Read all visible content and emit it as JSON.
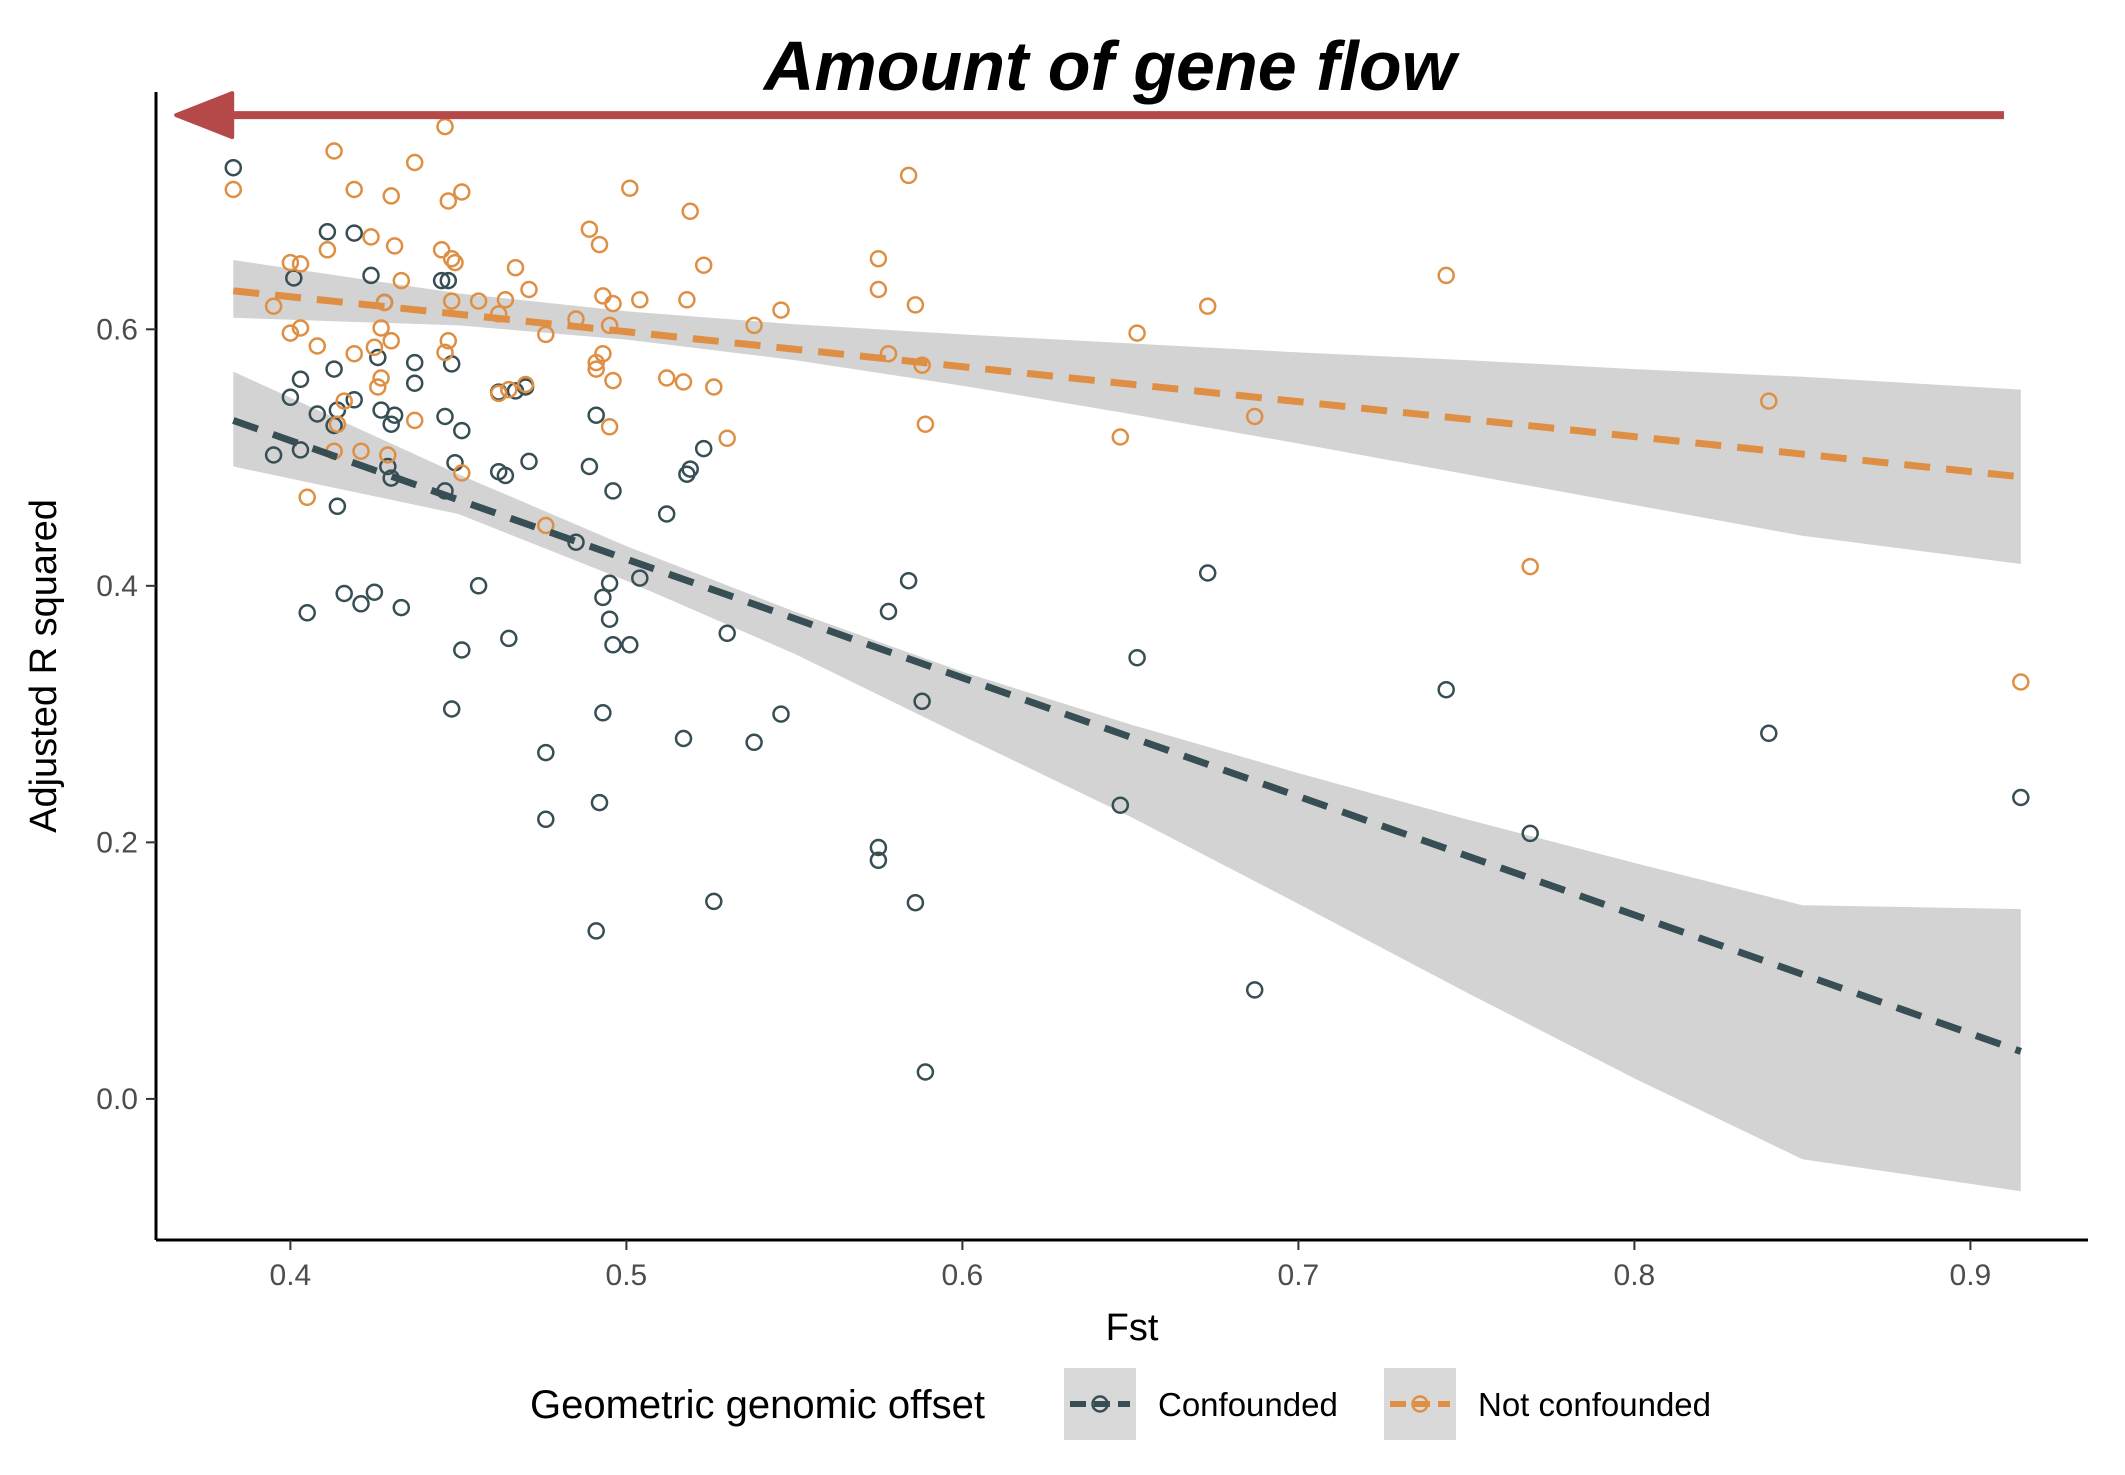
{
  "chart_data": {
    "type": "scatter",
    "title": "Amount of gene flow",
    "xlabel": "Fst",
    "ylabel": "Adjusted R squared",
    "xlim": [
      0.36,
      0.935
    ],
    "ylim": [
      -0.11,
      0.785
    ],
    "x_ticks": [
      0.4,
      0.5,
      0.6,
      0.7,
      0.8,
      0.9
    ],
    "x_tick_labels": [
      "0.4",
      "0.5",
      "0.6",
      "0.7",
      "0.8",
      "0.9"
    ],
    "y_ticks": [
      0.0,
      0.2,
      0.4,
      0.6
    ],
    "y_tick_labels": [
      "0.0",
      "0.2",
      "0.4",
      "0.6"
    ],
    "grid": false,
    "legend": {
      "title": "Geometric genomic offset",
      "position": "bottom",
      "entries": [
        "Confounded",
        "Not confounded"
      ]
    },
    "arrow": {
      "direction": "left",
      "from": [
        0.91,
        0.767
      ],
      "to": [
        0.366,
        0.767
      ],
      "color": "#b5494a"
    },
    "series": [
      {
        "name": "Confounded",
        "color": "#374e55",
        "trend": {
          "x": [
            0.383,
            0.915
          ],
          "y": [
            0.529,
            0.037
          ]
        },
        "band": {
          "x": [
            0.383,
            0.45,
            0.5,
            0.55,
            0.6,
            0.65,
            0.7,
            0.75,
            0.8,
            0.85,
            0.915
          ],
          "upper": [
            0.567,
            0.487,
            0.431,
            0.38,
            0.333,
            0.292,
            0.254,
            0.218,
            0.184,
            0.151,
            0.148
          ],
          "lower": [
            0.493,
            0.456,
            0.404,
            0.347,
            0.283,
            0.22,
            0.152,
            0.083,
            0.016,
            -0.047,
            -0.072
          ]
        },
        "points": [
          [
            0.383,
            0.726
          ],
          [
            0.395,
            0.502
          ],
          [
            0.4,
            0.547
          ],
          [
            0.401,
            0.64
          ],
          [
            0.403,
            0.506
          ],
          [
            0.403,
            0.561
          ],
          [
            0.405,
            0.379
          ],
          [
            0.408,
            0.534
          ],
          [
            0.411,
            0.676
          ],
          [
            0.413,
            0.525
          ],
          [
            0.413,
            0.569
          ],
          [
            0.414,
            0.537
          ],
          [
            0.414,
            0.462
          ],
          [
            0.416,
            0.394
          ],
          [
            0.419,
            0.675
          ],
          [
            0.419,
            0.545
          ],
          [
            0.421,
            0.386
          ],
          [
            0.424,
            0.642
          ],
          [
            0.425,
            0.395
          ],
          [
            0.426,
            0.578
          ],
          [
            0.427,
            0.537
          ],
          [
            0.428,
            0.621
          ],
          [
            0.429,
            0.493
          ],
          [
            0.43,
            0.484
          ],
          [
            0.43,
            0.526
          ],
          [
            0.431,
            0.533
          ],
          [
            0.433,
            0.383
          ],
          [
            0.437,
            0.558
          ],
          [
            0.437,
            0.574
          ],
          [
            0.445,
            0.638
          ],
          [
            0.446,
            0.474
          ],
          [
            0.446,
            0.532
          ],
          [
            0.447,
            0.638
          ],
          [
            0.448,
            0.573
          ],
          [
            0.448,
            0.304
          ],
          [
            0.449,
            0.496
          ],
          [
            0.451,
            0.521
          ],
          [
            0.451,
            0.35
          ],
          [
            0.456,
            0.4
          ],
          [
            0.462,
            0.551
          ],
          [
            0.462,
            0.489
          ],
          [
            0.464,
            0.486
          ],
          [
            0.465,
            0.359
          ],
          [
            0.467,
            0.552
          ],
          [
            0.47,
            0.555
          ],
          [
            0.471,
            0.497
          ],
          [
            0.476,
            0.27
          ],
          [
            0.476,
            0.218
          ],
          [
            0.485,
            0.434
          ],
          [
            0.489,
            0.493
          ],
          [
            0.491,
            0.533
          ],
          [
            0.491,
            0.131
          ],
          [
            0.492,
            0.231
          ],
          [
            0.493,
            0.391
          ],
          [
            0.493,
            0.301
          ],
          [
            0.495,
            0.374
          ],
          [
            0.495,
            0.402
          ],
          [
            0.496,
            0.474
          ],
          [
            0.496,
            0.354
          ],
          [
            0.501,
            0.354
          ],
          [
            0.504,
            0.406
          ],
          [
            0.512,
            0.456
          ],
          [
            0.517,
            0.281
          ],
          [
            0.518,
            0.487
          ],
          [
            0.519,
            0.491
          ],
          [
            0.523,
            0.507
          ],
          [
            0.526,
            0.154
          ],
          [
            0.53,
            0.363
          ],
          [
            0.538,
            0.278
          ],
          [
            0.546,
            0.3
          ],
          [
            0.575,
            0.196
          ],
          [
            0.575,
            0.186
          ],
          [
            0.578,
            0.38
          ],
          [
            0.584,
            0.404
          ],
          [
            0.586,
            0.153
          ],
          [
            0.588,
            0.31
          ],
          [
            0.589,
            0.021
          ],
          [
            0.647,
            0.229
          ],
          [
            0.652,
            0.344
          ],
          [
            0.673,
            0.41
          ],
          [
            0.687,
            0.085
          ],
          [
            0.744,
            0.319
          ],
          [
            0.769,
            0.207
          ],
          [
            0.84,
            0.285
          ],
          [
            0.915,
            0.235
          ]
        ]
      },
      {
        "name": "Not confounded",
        "color": "#df8f44",
        "trend": {
          "x": [
            0.383,
            0.915
          ],
          "y": [
            0.63,
            0.485
          ]
        },
        "band": {
          "x": [
            0.383,
            0.45,
            0.5,
            0.55,
            0.6,
            0.65,
            0.7,
            0.75,
            0.8,
            0.85,
            0.915
          ],
          "upper": [
            0.654,
            0.628,
            0.614,
            0.604,
            0.596,
            0.589,
            0.582,
            0.576,
            0.569,
            0.563,
            0.553
          ],
          "lower": [
            0.609,
            0.603,
            0.592,
            0.576,
            0.556,
            0.534,
            0.511,
            0.487,
            0.463,
            0.439,
            0.417
          ]
        },
        "points": [
          [
            0.383,
            0.709
          ],
          [
            0.395,
            0.618
          ],
          [
            0.4,
            0.597
          ],
          [
            0.4,
            0.652
          ],
          [
            0.403,
            0.651
          ],
          [
            0.403,
            0.601
          ],
          [
            0.405,
            0.469
          ],
          [
            0.408,
            0.587
          ],
          [
            0.411,
            0.662
          ],
          [
            0.413,
            0.739
          ],
          [
            0.413,
            0.505
          ],
          [
            0.414,
            0.526
          ],
          [
            0.416,
            0.544
          ],
          [
            0.419,
            0.709
          ],
          [
            0.419,
            0.581
          ],
          [
            0.421,
            0.505
          ],
          [
            0.424,
            0.672
          ],
          [
            0.425,
            0.586
          ],
          [
            0.426,
            0.555
          ],
          [
            0.427,
            0.562
          ],
          [
            0.427,
            0.601
          ],
          [
            0.428,
            0.621
          ],
          [
            0.429,
            0.502
          ],
          [
            0.43,
            0.704
          ],
          [
            0.43,
            0.591
          ],
          [
            0.431,
            0.665
          ],
          [
            0.433,
            0.638
          ],
          [
            0.437,
            0.529
          ],
          [
            0.437,
            0.73
          ],
          [
            0.445,
            0.662
          ],
          [
            0.446,
            0.758
          ],
          [
            0.446,
            0.582
          ],
          [
            0.447,
            0.591
          ],
          [
            0.447,
            0.7
          ],
          [
            0.448,
            0.622
          ],
          [
            0.448,
            0.655
          ],
          [
            0.449,
            0.652
          ],
          [
            0.451,
            0.707
          ],
          [
            0.451,
            0.488
          ],
          [
            0.456,
            0.622
          ],
          [
            0.462,
            0.612
          ],
          [
            0.462,
            0.55
          ],
          [
            0.464,
            0.623
          ],
          [
            0.465,
            0.553
          ],
          [
            0.467,
            0.648
          ],
          [
            0.47,
            0.557
          ],
          [
            0.471,
            0.631
          ],
          [
            0.476,
            0.596
          ],
          [
            0.476,
            0.447
          ],
          [
            0.485,
            0.608
          ],
          [
            0.489,
            0.678
          ],
          [
            0.491,
            0.574
          ],
          [
            0.491,
            0.569
          ],
          [
            0.492,
            0.666
          ],
          [
            0.493,
            0.581
          ],
          [
            0.493,
            0.626
          ],
          [
            0.495,
            0.524
          ],
          [
            0.495,
            0.603
          ],
          [
            0.496,
            0.56
          ],
          [
            0.496,
            0.62
          ],
          [
            0.501,
            0.71
          ],
          [
            0.504,
            0.623
          ],
          [
            0.512,
            0.562
          ],
          [
            0.517,
            0.559
          ],
          [
            0.518,
            0.623
          ],
          [
            0.519,
            0.692
          ],
          [
            0.523,
            0.65
          ],
          [
            0.526,
            0.555
          ],
          [
            0.53,
            0.515
          ],
          [
            0.538,
            0.603
          ],
          [
            0.546,
            0.615
          ],
          [
            0.575,
            0.655
          ],
          [
            0.575,
            0.631
          ],
          [
            0.578,
            0.581
          ],
          [
            0.584,
            0.72
          ],
          [
            0.586,
            0.619
          ],
          [
            0.588,
            0.572
          ],
          [
            0.589,
            0.526
          ],
          [
            0.647,
            0.516
          ],
          [
            0.652,
            0.597
          ],
          [
            0.673,
            0.618
          ],
          [
            0.687,
            0.532
          ],
          [
            0.744,
            0.642
          ],
          [
            0.769,
            0.415
          ],
          [
            0.84,
            0.544
          ],
          [
            0.915,
            0.325
          ]
        ]
      }
    ]
  }
}
